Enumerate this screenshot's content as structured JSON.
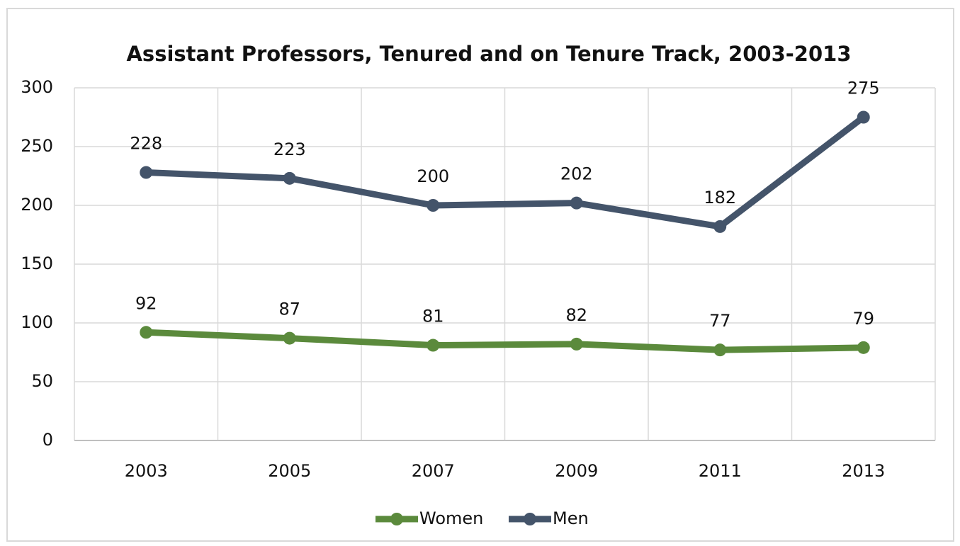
{
  "chart_data": {
    "type": "line",
    "title": "Assistant Professors, Tenured and on Tenure Track, 2003-2013",
    "categories": [
      "2003",
      "2005",
      "2007",
      "2009",
      "2011",
      "2013"
    ],
    "series": [
      {
        "name": "Women",
        "color": "#5b8a3c",
        "values": [
          92,
          87,
          81,
          82,
          77,
          79
        ]
      },
      {
        "name": "Men",
        "color": "#44546a",
        "values": [
          228,
          223,
          200,
          202,
          182,
          275
        ]
      }
    ],
    "ylim": [
      0,
      300
    ],
    "yticks": [
      0,
      50,
      100,
      150,
      200,
      250,
      300
    ],
    "grid": true,
    "legend": "bottom"
  }
}
